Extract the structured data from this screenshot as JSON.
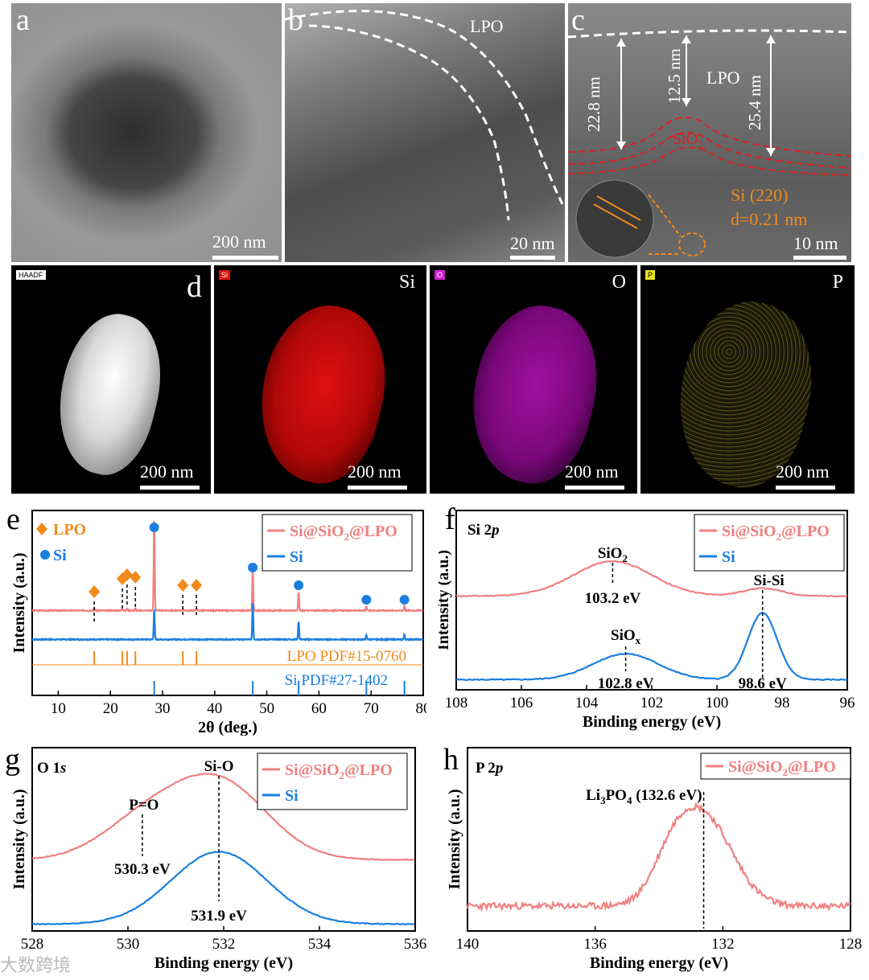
{
  "panels": {
    "a": {
      "letter": "a",
      "scale": "200 nm"
    },
    "b": {
      "letter": "b",
      "scale": "20 nm",
      "label": "LPO"
    },
    "c": {
      "letter": "c",
      "scale": "10 nm",
      "label_lpo": "LPO",
      "label_sio2": "SiO",
      "label_sio2_sub": "2",
      "thick1": "22.8 nm",
      "thick2": "12.5 nm",
      "thick3": "25.4 nm",
      "lattice1": "Si (220)",
      "lattice2": "d=0.21 nm"
    },
    "d": {
      "letter": "d",
      "maps": [
        {
          "tag": "HAADF",
          "element": "",
          "scale": "200 nm",
          "color": "#ffffff"
        },
        {
          "tag": "Si",
          "element": "Si",
          "scale": "200 nm",
          "color": "#e01010"
        },
        {
          "tag": "O",
          "element": "O",
          "scale": "200 nm",
          "color": "#d020d0"
        },
        {
          "tag": "P",
          "element": "P",
          "scale": "200 nm",
          "color": "#d8d020"
        }
      ]
    }
  },
  "colors": {
    "pink": "#f08080",
    "blue": "#1a7fe0",
    "orange": "#f08a1c"
  },
  "chart_data": [
    {
      "panel": "e",
      "type": "line",
      "xlabel": "2θ (deg.)",
      "ylabel": "Intensity (a.u.)",
      "xlim": [
        5,
        80
      ],
      "xticks": [
        10,
        20,
        30,
        40,
        50,
        60,
        70,
        80
      ],
      "legend": [
        "Si@SiO2@LPO",
        "Si"
      ],
      "legend_left": [
        {
          "symbol": "diamond",
          "text": "LPO"
        },
        {
          "symbol": "circle",
          "text": "Si"
        }
      ],
      "series": [
        {
          "name": "Si@SiO2@LPO",
          "peaks": [
            [
              28.4,
              95
            ],
            [
              47.3,
              40
            ],
            [
              56.1,
              18
            ],
            [
              69.1,
              4
            ],
            [
              76.4,
              5
            ],
            [
              16.9,
              2
            ],
            [
              22.3,
              2
            ],
            [
              23.2,
              2
            ],
            [
              24.8,
              2
            ],
            [
              33.9,
              2
            ],
            [
              36.5,
              2
            ]
          ]
        },
        {
          "name": "Si",
          "peaks": [
            [
              28.4,
              30
            ],
            [
              47.3,
              36
            ],
            [
              56.1,
              18
            ],
            [
              69.1,
              4
            ],
            [
              76.4,
              5
            ]
          ]
        }
      ],
      "lpo_markers": [
        16.9,
        22.3,
        23.2,
        24.8,
        33.9,
        36.5
      ],
      "si_markers": [
        28.4,
        47.3,
        56.1,
        69.1,
        76.4
      ],
      "refs": [
        {
          "name": "LPO PDF#15-0760",
          "lines": [
            16.9,
            22.3,
            23.2,
            24.8,
            33.9,
            36.5
          ]
        },
        {
          "name": "Si PDF#27-1402",
          "lines": [
            28.4,
            47.3,
            56.1,
            69.1,
            76.4
          ]
        }
      ]
    },
    {
      "panel": "f",
      "type": "line",
      "title": "Si 2p",
      "xlabel": "Binding energy (eV)",
      "ylabel": "Intensity (a.u.)",
      "xlim": [
        108,
        96
      ],
      "xticks": [
        108,
        106,
        104,
        102,
        100,
        98,
        96
      ],
      "legend": [
        "Si@SiO2@LPO",
        "Si"
      ],
      "series": [
        {
          "name": "Si@SiO2@LPO",
          "peaks": [
            [
              103.2,
              0.9,
              1.2
            ],
            [
              98.6,
              0.2,
              0.6
            ]
          ]
        },
        {
          "name": "Si",
          "peaks": [
            [
              102.8,
              0.7,
              1.0
            ],
            [
              98.6,
              1.8,
              0.45
            ]
          ]
        }
      ],
      "annotations": [
        {
          "text": "SiO",
          "sub": "2",
          "x": 103.2,
          "value": "103.2 eV"
        },
        {
          "text": "SiO",
          "sub": "x",
          "x": 102.8,
          "value": "102.8 eV"
        },
        {
          "text": "Si-Si",
          "x": 98.6,
          "value": "98.6 eV"
        }
      ]
    },
    {
      "panel": "g",
      "type": "line",
      "title": "O 1s",
      "xlabel": "Binding energy (eV)",
      "ylabel": "Intensity (a.u.)",
      "xlim": [
        528,
        536
      ],
      "xticks": [
        528,
        530,
        532,
        534,
        536
      ],
      "legend": [
        "Si@SiO2@LPO",
        "Si"
      ],
      "series": [
        {
          "name": "Si@SiO2@LPO",
          "peaks": [
            [
              531.9,
              1.0,
              1.0
            ],
            [
              530.3,
              0.45,
              0.9
            ]
          ]
        },
        {
          "name": "Si",
          "peaks": [
            [
              531.9,
              1.0,
              1.0
            ]
          ]
        }
      ],
      "annotations": [
        {
          "text": "P=O",
          "x": 530.3,
          "value": "530.3 eV"
        },
        {
          "text": "Si-O",
          "x": 531.9,
          "value": "531.9 eV"
        }
      ]
    },
    {
      "panel": "h",
      "type": "line",
      "title": "P 2p",
      "xlabel": "Binding energy (eV)",
      "ylabel": "Intensity (a.u.)",
      "xlim": [
        140,
        128
      ],
      "xticks": [
        140,
        136,
        132,
        128
      ],
      "legend": [
        "Si@SiO2@LPO"
      ],
      "series": [
        {
          "name": "Si@SiO2@LPO",
          "peaks": [
            [
              132.6,
              1.0,
              1.0
            ]
          ]
        }
      ],
      "annotations": [
        {
          "text": "Li3PO4 (132.6 eV)",
          "x": 132.6
        }
      ]
    }
  ],
  "watermark": "大数跨境"
}
